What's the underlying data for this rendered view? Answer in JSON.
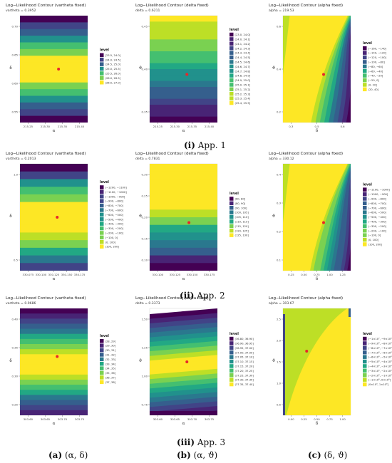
{
  "colors": {
    "viridis": [
      "#440154",
      "#482475",
      "#414487",
      "#355f8d",
      "#2a788e",
      "#21918c",
      "#22a884",
      "#44bf70",
      "#7ad151",
      "#bddf26",
      "#fde725"
    ],
    "point": "#e8262a"
  },
  "captions": {
    "row1": {
      "num": "(i)",
      "text": " App. 1"
    },
    "row2": {
      "num": "(ii)",
      "text": " App. 2"
    },
    "row3": {
      "num": "(iii)",
      "text": " App. 3"
    },
    "colA": {
      "num": "(a)",
      "text": " (α, δ)"
    },
    "colB": {
      "num": "(b)",
      "text": " (α, ϑ)"
    },
    "colC": {
      "num": "(c)",
      "text": " (δ, ϑ)"
    }
  },
  "chart_data": [
    {
      "type": "heatmap",
      "panel": "r1c1",
      "title": "Log−Likelihood Contour (vartheta fixed)",
      "subtitle": "vartheta = 0.3952",
      "xlabel": "α",
      "ylabel": "δ",
      "xticks": [
        "215.25",
        "215.30",
        "215.35",
        "215.40"
      ],
      "yticks": [
        "0.70",
        "0.65",
        "0.60",
        "0.55"
      ],
      "legend_title": "level",
      "legend": [
        "[23.5, 24.0]",
        "(24.0, 24.5]",
        "(24.5, 25.0]",
        "(25.0, 25.5]",
        "(25.5, 26.0]",
        "(26.0, 26.5]",
        "(26.5, 27.0]"
      ],
      "pattern": "hbands",
      "bands": [
        0,
        1,
        2,
        3,
        4,
        5,
        6,
        6,
        6,
        6,
        5,
        4,
        3,
        2,
        1,
        0
      ],
      "mark": [
        0.57,
        0.5
      ]
    },
    {
      "type": "heatmap",
      "panel": "r1c2",
      "title": "Log−Likelihood Contour (delta fixed)",
      "subtitle": "delta = 0.6211",
      "xlabel": "α",
      "ylabel": "ϑ",
      "xticks": [
        "215.25",
        "215.30",
        "215.35",
        "215.40"
      ],
      "yticks": [
        "0.45",
        "0.40",
        "0.35"
      ],
      "legend_title": "level",
      "legend": [
        "[23.0, 24.0]",
        "(24.0, 24.1]",
        "(24.1, 24.2]",
        "(24.2, 24.3]",
        "(24.3, 24.4]",
        "(24.4, 24.5]",
        "(24.5, 24.6]",
        "(24.6, 24.7]",
        "(24.7, 24.8]",
        "(24.8, 24.9]",
        "(24.9, 25.0]",
        "(25.0, 25.1]",
        "(25.1, 25.2]",
        "(25.2, 25.3]",
        "(25.3, 25.4]",
        "(25.4, 25.5]"
      ],
      "pattern": "hbands",
      "bands": [
        15,
        14,
        13,
        13,
        12,
        12,
        11,
        10,
        9,
        8,
        7,
        6,
        5,
        4,
        3,
        2,
        1,
        0
      ],
      "mark": [
        0.55,
        0.55
      ]
    },
    {
      "type": "heatmap",
      "panel": "r1c3",
      "title": "Log−Likelihood Contour (alpha fixed)",
      "subtitle": "alpha = 219.53",
      "xlabel": "δ",
      "ylabel": "ϑ",
      "xticks": [
        "0.3",
        "0.5",
        "0.6"
      ],
      "yticks": [
        "0.6",
        "0.4",
        "0.2"
      ],
      "legend_title": "level",
      "legend": [
        "[−160, −140]",
        "(−140, −120]",
        "(−120, −100]",
        "(−100, −80]",
        "(−80, −60]",
        "(−60, −40]",
        "(−40, −20]",
        "(−20, 0]",
        "(0, 20]",
        "(20, 40]"
      ],
      "pattern": "curves",
      "bands": [
        9,
        8,
        7,
        6,
        5,
        4,
        3,
        2,
        1,
        0
      ],
      "mark": [
        0.6,
        0.55
      ]
    },
    {
      "type": "heatmap",
      "panel": "r2c1",
      "title": "Log−Likelihood Contour (vartheta fixed)",
      "subtitle": "vartheta = 0.2013",
      "xlabel": "α",
      "ylabel": "δ",
      "xticks": [
        "330.075",
        "330.100",
        "330.125",
        "330.150",
        "330.175"
      ],
      "yticks": [
        "1.0",
        "0.5"
      ],
      "legend_title": "level",
      "legend": [
        "(−1200, −1100]",
        "(−1100, −1000]",
        "(−1000, −900]",
        "(−900, −800]",
        "(−800, −700]",
        "(−700, −600]",
        "(−600, −500]",
        "(−500, −400]",
        "(−400, −300]",
        "(−300, −200]",
        "(−200, −100]",
        "(−100, 0]",
        "(0, 100]",
        "(100, 200]"
      ],
      "pattern": "hbands",
      "bands": [
        0,
        3,
        6,
        9,
        11,
        13,
        13,
        13,
        13,
        12,
        10,
        8,
        5,
        2
      ],
      "mark": [
        0.55,
        0.5
      ]
    },
    {
      "type": "heatmap",
      "panel": "r2c2",
      "title": "Log−Likelihood Contour (delta fixed)",
      "subtitle": "delta = 0.7831",
      "xlabel": "α",
      "ylabel": "ϑ",
      "xticks": [
        "330.100",
        "330.125",
        "330.150",
        "330.175"
      ],
      "yticks": [
        "0.30",
        "0.25",
        "0.20",
        "0.15",
        "0.10"
      ],
      "legend_title": "level",
      "legend": [
        "(60, 80]",
        "(80, 90]",
        "(90, 100]",
        "(100, 105]",
        "(105, 110]",
        "(110, 115]",
        "(115, 120]",
        "(120, 125]",
        "(125, 130]"
      ],
      "pattern": "hbands",
      "bands": [
        8,
        8,
        8,
        8,
        8,
        8,
        7,
        6,
        5,
        4,
        3,
        2,
        1,
        0
      ],
      "mark": [
        0.58,
        0.55
      ]
    },
    {
      "type": "heatmap",
      "panel": "r2c3",
      "title": "Log−Likelihood Contour (alpha fixed)",
      "subtitle": "alpha = 330.12",
      "xlabel": "δ",
      "ylabel": "ϑ",
      "xticks": [
        "0.25",
        "0.50",
        "0.75",
        "1.00",
        "1.25"
      ],
      "yticks": [
        "0.4",
        "0.3",
        "0.2",
        "0.1"
      ],
      "legend_title": "level",
      "legend": [
        "(−1100, −1000]",
        "(−1000, −900]",
        "(−900, −800]",
        "(−800, −700]",
        "(−700, −600]",
        "(−600, −500]",
        "(−500, −400]",
        "(−400, −300]",
        "(−300, −200]",
        "(−200, −100]",
        "(−100, 0]",
        "(0, 100]",
        "(100, 200]"
      ],
      "pattern": "curves",
      "bands": [
        12,
        11,
        10,
        9,
        8,
        7,
        6,
        5,
        4,
        3,
        2,
        1,
        0
      ],
      "mark": [
        0.6,
        0.55
      ]
    },
    {
      "type": "heatmap",
      "panel": "r3c1",
      "title": "Log−Likelihood Contour (vartheta fixed)",
      "subtitle": "vartheta = 0.9686",
      "xlabel": "α",
      "ylabel": "δ",
      "xticks": [
        "303.60",
        "303.65",
        "303.70",
        "303.75"
      ],
      "yticks": [
        "0.40",
        "0.35",
        "0.30",
        "0.25"
      ],
      "legend_title": "level",
      "legend": [
        "(28, 29]",
        "(29, 30]",
        "(30, 31]",
        "(31, 32]",
        "(32, 33]",
        "(33, 34]",
        "(34, 35]",
        "(35, 36]",
        "(36, 37]",
        "(37, 38]"
      ],
      "pattern": "hbands",
      "bands": [
        0,
        1,
        2,
        3,
        4,
        5,
        6,
        7,
        8,
        9,
        9,
        9,
        9,
        8,
        7,
        6,
        5,
        4,
        3,
        2,
        1
      ],
      "mark": [
        0.55,
        0.45
      ]
    },
    {
      "type": "heatmap",
      "panel": "r3c2",
      "title": "Log−Likelihood Contour (delta fixed)",
      "subtitle": "delta = 0.3373",
      "xlabel": "α",
      "ylabel": "ϑ",
      "xticks": [
        "303.60",
        "303.65",
        "303.70",
        "303.75"
      ],
      "yticks": [
        "1.50",
        "1.25",
        "1.00",
        "0.75"
      ],
      "legend_title": "level",
      "legend": [
        "(36.80, 36.90]",
        "(36.90, 36.95]",
        "(36.95, 37.00]",
        "(37.00, 37.05]",
        "(37.05, 37.10]",
        "(37.10, 37.15]",
        "(37.15, 37.20]",
        "(37.20, 37.25]",
        "(37.25, 37.30]",
        "(37.30, 37.35]",
        "(37.35, 37.40]"
      ],
      "pattern": "tilted",
      "bands": [
        0,
        1,
        2,
        3,
        4,
        5,
        6,
        7,
        8,
        9,
        10,
        10,
        10,
        9,
        8,
        7,
        6,
        5,
        4,
        3,
        2,
        1,
        0
      ],
      "mark": [
        0.55,
        0.5
      ]
    },
    {
      "type": "heatmap",
      "panel": "r3c3",
      "title": "Log−Likelihood Contour (alpha fixed)",
      "subtitle": "alpha = 303.67",
      "xlabel": "δ",
      "ylabel": "ϑ",
      "xticks": [
        "0.00",
        "0.25",
        "0.50",
        "0.75",
        "1.00"
      ],
      "yticks": [
        "2.5",
        "2.0",
        "1.5",
        "1.0",
        "0.5"
      ],
      "legend_title": "level",
      "legend": [
        "(−1×10⁷, −9×10⁶]",
        "(−9×10⁶, −8×10⁶]",
        "(−8×10⁶, −7×10⁶]",
        "(−7×10⁶, −6×10⁶]",
        "(−6×10⁶, −5×10⁶]",
        "(−5×10⁶, −4×10⁶]",
        "(−4×10⁶, −3×10⁶]",
        "(−3×10⁶, −2×10⁶]",
        "(−2×10⁶, −1×10⁶]",
        "(−1×10⁶, 0×10⁰]",
        "(0×10⁰, 1×10⁶]"
      ],
      "pattern": "flat",
      "bands": [
        9,
        10
      ],
      "mark": [
        0.35,
        0.4
      ]
    }
  ]
}
